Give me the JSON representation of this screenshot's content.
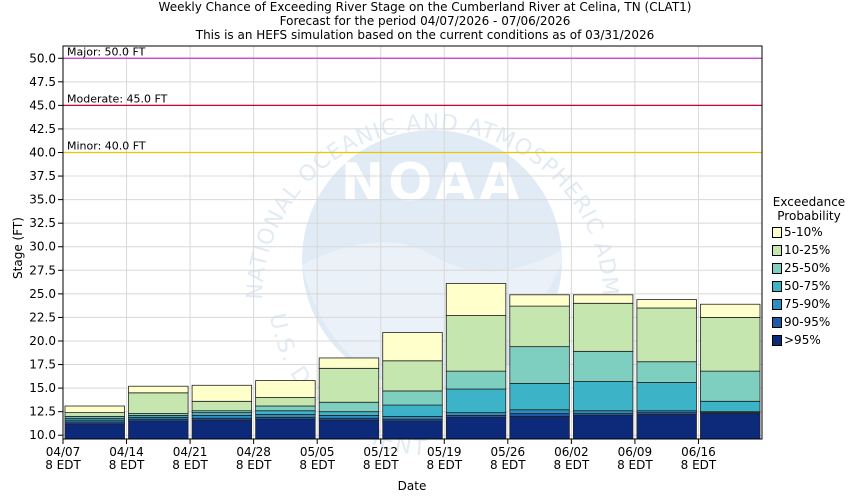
{
  "title": {
    "line1": "Weekly Chance of Exceeding River Stage on the Cumberland River at Celina, TN (CLAT1)",
    "line2": "Forecast for the period 04/07/2026 - 07/06/2026",
    "line3": "This is an HEFS simulation based on the current conditions as of 03/31/2026"
  },
  "watermark": {
    "logo_text": "NOAA",
    "ring_text": "NATIONAL OCEANIC AND ATMOSPHERIC ADMINISTRATION",
    "dept_text": "U.S. DEPARTMENT OF COMMERCE"
  },
  "legend": {
    "title_line1": "Exceedance",
    "title_line2": "Probability"
  },
  "chart_data": {
    "type": "bar",
    "subtype": "stacked-floating-weekly",
    "xlabel": "Date",
    "ylabel": "Stage (FT)",
    "ylim": [
      9.6,
      51.3
    ],
    "y_ticks": [
      10.0,
      12.5,
      15.0,
      17.5,
      20.0,
      22.5,
      25.0,
      27.5,
      30.0,
      32.5,
      35.0,
      37.5,
      40.0,
      42.5,
      45.0,
      47.5,
      50.0
    ],
    "x_tick_labels": [
      [
        "04/07",
        "8 EDT"
      ],
      [
        "04/14",
        "8 EDT"
      ],
      [
        "04/21",
        "8 EDT"
      ],
      [
        "04/28",
        "8 EDT"
      ],
      [
        "05/05",
        "8 EDT"
      ],
      [
        "05/12",
        "8 EDT"
      ],
      [
        "05/19",
        "8 EDT"
      ],
      [
        "05/26",
        "8 EDT"
      ],
      [
        "06/02",
        "8 EDT"
      ],
      [
        "06/09",
        "8 EDT"
      ],
      [
        "06/16",
        "8 EDT"
      ]
    ],
    "thresholds": [
      {
        "label": "Major: 50.0 FT",
        "value": 50.0,
        "color": "#cc33cc"
      },
      {
        "label": "Moderate: 45.0 FT",
        "value": 45.0,
        "color": "#cc0033"
      },
      {
        "label": "Minor: 40.0 FT",
        "value": 40.0,
        "color": "#e6c800"
      }
    ],
    "series": [
      {
        "name": ">95%",
        "color": "#0d2a7a"
      },
      {
        "name": "90-95%",
        "color": "#1f5aa8"
      },
      {
        "name": "75-90%",
        "color": "#2a8fc2"
      },
      {
        "name": "50-75%",
        "color": "#3db3c8"
      },
      {
        "name": "25-50%",
        "color": "#7fcfc0"
      },
      {
        "name": "10-25%",
        "color": "#c6e6b0"
      },
      {
        "name": "5-10%",
        "color": "#ffffcc"
      }
    ],
    "weeks": [
      {
        "start": "04/07",
        "stages": [
          9.6,
          11.2,
          11.4,
          11.6,
          11.8,
          12.0,
          12.4,
          13.1
        ]
      },
      {
        "start": "04/14",
        "stages": [
          9.6,
          11.5,
          11.7,
          11.9,
          12.1,
          12.3,
          14.5,
          15.2
        ]
      },
      {
        "start": "04/21",
        "stages": [
          9.6,
          11.6,
          11.8,
          12.1,
          12.4,
          12.6,
          13.6,
          15.3
        ]
      },
      {
        "start": "04/28",
        "stages": [
          9.6,
          11.7,
          11.9,
          12.2,
          12.6,
          13.1,
          14.0,
          15.8
        ]
      },
      {
        "start": "05/05",
        "stages": [
          9.6,
          11.6,
          11.8,
          12.1,
          12.5,
          13.5,
          17.1,
          18.2
        ]
      },
      {
        "start": "05/12",
        "stages": [
          9.6,
          11.5,
          11.7,
          12.0,
          13.2,
          14.7,
          17.9,
          20.9
        ]
      },
      {
        "start": "05/19",
        "stages": [
          9.6,
          11.9,
          12.1,
          12.4,
          14.9,
          16.8,
          22.7,
          26.1
        ]
      },
      {
        "start": "05/26",
        "stages": [
          9.6,
          12.0,
          12.3,
          12.7,
          15.5,
          19.4,
          23.7,
          24.9
        ]
      },
      {
        "start": "06/02",
        "stages": [
          9.6,
          12.1,
          12.3,
          12.6,
          15.7,
          18.9,
          24.0,
          24.9
        ]
      },
      {
        "start": "06/09",
        "stages": [
          9.6,
          12.2,
          12.4,
          12.6,
          15.6,
          17.8,
          23.5,
          24.4
        ]
      },
      {
        "start": "06/16",
        "stages": [
          9.6,
          12.3,
          12.4,
          12.5,
          13.6,
          16.8,
          22.5,
          23.9
        ]
      }
    ]
  }
}
